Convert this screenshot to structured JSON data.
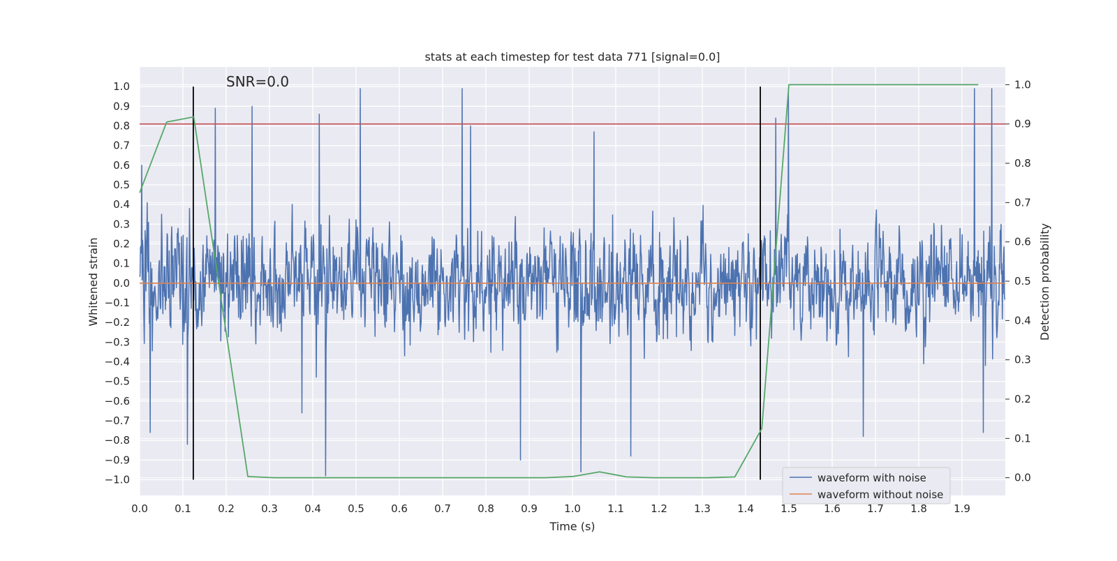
{
  "chart_data": {
    "type": "line",
    "title": "stats at each timestep for test data 771 [signal=0.0]",
    "xlabel": "Time (s)",
    "ylabel_left": "Whitened strain",
    "ylabel_right": "Detection probability",
    "annotation": "SNR=0.0",
    "xlim": [
      0.0,
      2.0
    ],
    "ylim_left": [
      -1.08,
      1.1
    ],
    "ylim_right": [
      -0.045,
      1.045
    ],
    "x_ticks": [
      "0.0",
      "0.1",
      "0.2",
      "0.3",
      "0.4",
      "0.5",
      "0.6",
      "0.7",
      "0.8",
      "0.9",
      "1.0",
      "1.1",
      "1.2",
      "1.3",
      "1.4",
      "1.5",
      "1.6",
      "1.7",
      "1.8",
      "1.9"
    ],
    "x_tick_values": [
      0.0,
      0.1,
      0.2,
      0.3,
      0.4,
      0.5,
      0.6,
      0.7,
      0.8,
      0.9,
      1.0,
      1.1,
      1.2,
      1.3,
      1.4,
      1.5,
      1.6,
      1.7,
      1.8,
      1.9
    ],
    "y_ticks_left": [
      "1.0",
      "0.9",
      "0.8",
      "0.7",
      "0.6",
      "0.5",
      "0.4",
      "0.3",
      "0.2",
      "0.1",
      "0.0",
      "−0.1",
      "−0.2",
      "−0.3",
      "−0.4",
      "−0.5",
      "−0.6",
      "−0.7",
      "−0.8",
      "−0.9",
      "−1.0"
    ],
    "y_tick_values_left": [
      1.0,
      0.9,
      0.8,
      0.7,
      0.6,
      0.5,
      0.4,
      0.3,
      0.2,
      0.1,
      0.0,
      -0.1,
      -0.2,
      -0.3,
      -0.4,
      -0.5,
      -0.6,
      -0.7,
      -0.8,
      -0.9,
      -1.0
    ],
    "y_ticks_right": [
      "1.0",
      "0.9",
      "0.8",
      "0.7",
      "0.6",
      "0.5",
      "0.4",
      "0.3",
      "0.2",
      "0.1",
      "0.0"
    ],
    "y_tick_values_right": [
      1.0,
      0.9,
      0.8,
      0.7,
      0.6,
      0.5,
      0.4,
      0.3,
      0.2,
      0.1,
      0.0
    ],
    "grid": true,
    "legend_position": "bottom-right",
    "legend": [
      "waveform with noise",
      "waveform without noise"
    ],
    "noise_waveform": {
      "name": "waveform with noise",
      "color": "#4c72b0",
      "sample_count": 2048,
      "notable_peaks": [
        {
          "x": 0.005,
          "y": 0.6
        },
        {
          "x": 0.024,
          "y": -0.76
        },
        {
          "x": 0.11,
          "y": -0.82
        },
        {
          "x": 0.175,
          "y": 0.89
        },
        {
          "x": 0.26,
          "y": 0.9
        },
        {
          "x": 0.375,
          "y": -0.66
        },
        {
          "x": 0.415,
          "y": 0.86
        },
        {
          "x": 0.43,
          "y": -0.98
        },
        {
          "x": 0.51,
          "y": 0.99
        },
        {
          "x": 0.745,
          "y": 0.99
        },
        {
          "x": 0.765,
          "y": 0.8
        },
        {
          "x": 0.88,
          "y": -0.9
        },
        {
          "x": 1.02,
          "y": -0.96
        },
        {
          "x": 1.05,
          "y": 0.77
        },
        {
          "x": 1.135,
          "y": -0.88
        },
        {
          "x": 1.47,
          "y": 0.84
        },
        {
          "x": 1.5,
          "y": 0.99
        },
        {
          "x": 1.673,
          "y": -0.78
        },
        {
          "x": 1.93,
          "y": 0.99
        },
        {
          "x": 1.95,
          "y": -0.76
        },
        {
          "x": 1.97,
          "y": 0.99
        }
      ]
    },
    "clean_waveform": {
      "name": "waveform without noise",
      "color": "#dd8452",
      "x": [
        0.0,
        2.0
      ],
      "y": [
        0.0,
        0.0
      ]
    },
    "detection_probability": {
      "color": "#55a868",
      "x": [
        0.0,
        0.0625,
        0.125,
        0.25,
        0.3125,
        0.375,
        0.4375,
        0.5,
        0.5625,
        0.625,
        0.6875,
        0.75,
        0.8125,
        0.875,
        0.9375,
        1.0,
        1.0625,
        1.125,
        1.1875,
        1.25,
        1.3125,
        1.375,
        1.4375,
        1.5,
        1.5625,
        1.625,
        1.6875,
        1.75,
        1.8125,
        1.875,
        1.9375
      ],
      "y": [
        0.725,
        0.905,
        0.918,
        0.003,
        0.0,
        0.0,
        0.0,
        0.0,
        0.0,
        0.0,
        0.0,
        0.0,
        0.0,
        0.0,
        0.0,
        0.003,
        0.015,
        0.002,
        0.0,
        0.0,
        0.0,
        0.002,
        0.125,
        1.0,
        1.0,
        1.0,
        1.0,
        1.0,
        1.0,
        1.0,
        1.0
      ]
    },
    "threshold": {
      "axis": "right",
      "y": 0.9,
      "color": "#c44e52"
    },
    "vertical_markers": {
      "x": [
        0.124,
        1.434
      ],
      "color": "#000000",
      "y_range": [
        -1.0,
        1.0
      ]
    }
  }
}
